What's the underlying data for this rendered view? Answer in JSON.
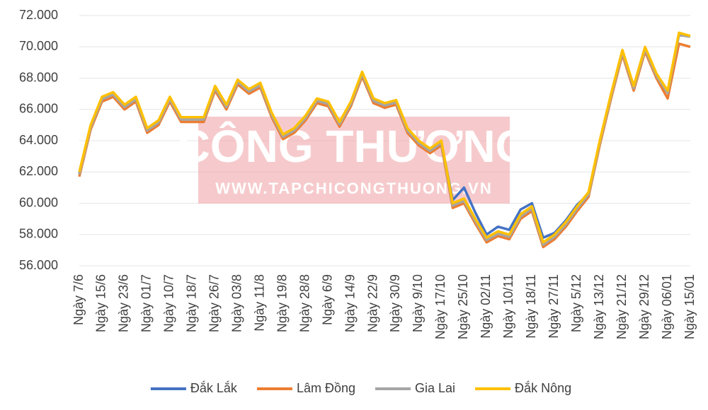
{
  "chart_data": {
    "type": "line",
    "categories": [
      "Ngày 7/6",
      null,
      "Ngày 15/6",
      null,
      "Ngày 23/6",
      null,
      "Ngày 01/7",
      null,
      "Ngày 10/7",
      null,
      "Ngày 18/7",
      null,
      "Ngày 26/7",
      null,
      "Ngày 03/8",
      null,
      "Ngày 11/8",
      null,
      "Ngày 19/8",
      null,
      "Ngày 28/8",
      null,
      "Ngày 6/9",
      null,
      "Ngày 14/9",
      null,
      "Ngày 22/9",
      null,
      "Ngày 30/9",
      null,
      "Ngày 9/10",
      null,
      "Ngày 17/10",
      null,
      "Ngày 25/10",
      null,
      "Ngày 02/11",
      null,
      "Ngày 10/11",
      null,
      "Ngày 18/11",
      null,
      "Ngày 27/11",
      null,
      "Ngày 5/12",
      null,
      "Ngày 13/12",
      null,
      "Ngày 21/12",
      null,
      "Ngày 29/12",
      null,
      "Ngày 06/01",
      null,
      "Ngày 15/01"
    ],
    "series": [
      {
        "name": "Đắk Lắk",
        "color": "#4472c4",
        "values": [
          61900,
          64900,
          66700,
          67000,
          66200,
          66700,
          64700,
          65200,
          66700,
          65400,
          65400,
          65400,
          67400,
          66200,
          67800,
          67200,
          67600,
          65700,
          64300,
          64700,
          65500,
          66600,
          66400,
          65100,
          66400,
          68300,
          66600,
          66300,
          66500,
          64700,
          63900,
          63400,
          63900,
          60200,
          61000,
          59400,
          58000,
          58500,
          58300,
          59600,
          60000,
          57800,
          58100,
          58900,
          59900,
          60600,
          63900,
          66900,
          69700,
          67400,
          69900,
          68200,
          67100,
          70800,
          70700
        ]
      },
      {
        "name": "Lâm Đồng",
        "color": "#ed7d31",
        "values": [
          61700,
          64700,
          66500,
          66800,
          66000,
          66500,
          64500,
          65000,
          66500,
          65200,
          65200,
          65200,
          67200,
          66000,
          67600,
          67000,
          67400,
          65500,
          64100,
          64500,
          65300,
          66400,
          66200,
          64900,
          66200,
          68100,
          66400,
          66100,
          66300,
          64500,
          63700,
          63200,
          63700,
          59700,
          60000,
          58700,
          57500,
          57900,
          57700,
          59000,
          59500,
          57200,
          57700,
          58500,
          59500,
          60400,
          63700,
          66700,
          69500,
          67200,
          69700,
          68000,
          66700,
          70200,
          70000
        ]
      },
      {
        "name": "Gia Lai",
        "color": "#a5a5a5",
        "values": [
          61850,
          64850,
          66650,
          66950,
          66150,
          66650,
          64650,
          65150,
          66650,
          65350,
          65350,
          65350,
          67350,
          66150,
          67750,
          67150,
          67550,
          65650,
          64250,
          64650,
          65450,
          66550,
          66350,
          65050,
          66350,
          68250,
          66550,
          66250,
          66450,
          64650,
          63850,
          63350,
          63850,
          59850,
          60150,
          58850,
          57650,
          58050,
          57850,
          59150,
          59650,
          57350,
          57850,
          58650,
          59650,
          60550,
          63850,
          66850,
          69650,
          67350,
          69850,
          68150,
          67050,
          70750,
          70650
        ]
      },
      {
        "name": "Đắk Nông",
        "color": "#ffc000",
        "values": [
          62000,
          65000,
          66800,
          67100,
          66300,
          66800,
          64800,
          65300,
          66800,
          65500,
          65500,
          65500,
          67500,
          66300,
          67900,
          67300,
          67700,
          65800,
          64400,
          64800,
          65600,
          66700,
          66500,
          65200,
          66500,
          68400,
          66700,
          66400,
          66600,
          64800,
          64000,
          63500,
          64000,
          60000,
          60300,
          59000,
          57800,
          58200,
          58000,
          59300,
          59800,
          57500,
          58000,
          58800,
          59800,
          60700,
          64000,
          67000,
          69800,
          67500,
          70000,
          68300,
          67200,
          70900,
          70700
        ]
      }
    ],
    "ylim": [
      56000,
      72000
    ],
    "yticks": [
      {
        "value": 56000,
        "label": "56.000"
      },
      {
        "value": 58000,
        "label": "58.000"
      },
      {
        "value": 60000,
        "label": "60.000"
      },
      {
        "value": 62000,
        "label": "62.000"
      },
      {
        "value": 64000,
        "label": "64.000"
      },
      {
        "value": 66000,
        "label": "66.000"
      },
      {
        "value": 68000,
        "label": "68.000"
      },
      {
        "value": 70000,
        "label": "70.000"
      },
      {
        "value": 72000,
        "label": "72.000"
      }
    ],
    "grid": true,
    "legend": "bottom"
  },
  "watermark": {
    "title": "CÔNG THƯƠNG",
    "url": "WWW.TAPCHICONGTHUONG.VN"
  }
}
